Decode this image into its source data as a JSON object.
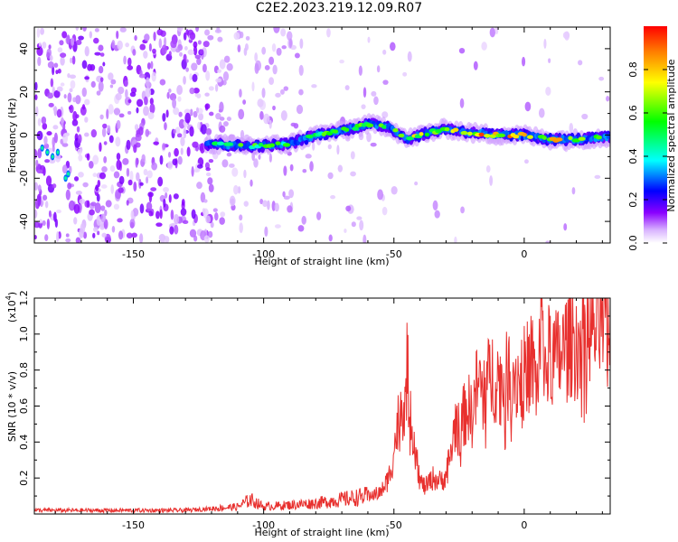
{
  "title": "C2E2.2023.219.12.09.R07",
  "chart_data": [
    {
      "type": "heatmap",
      "xlabel": "Height of straight line (km)",
      "ylabel": "Frequency (Hz)",
      "xlim": [
        -188,
        33
      ],
      "ylim": [
        -50,
        50
      ],
      "x_ticks": [
        -150,
        -100,
        -50,
        0
      ],
      "y_ticks": [
        -40,
        -20,
        0,
        20,
        40
      ],
      "colorbar": {
        "label": "Normalized spectral amplitude",
        "range": [
          0,
          1
        ],
        "ticks": [
          "0.0",
          "0.2",
          "0.4",
          "0.6",
          "0.8"
        ],
        "colormap": "rainbow (white-violet-blue-cyan-green-yellow-red)"
      },
      "ridge": [
        {
          "x": -185,
          "f": -6,
          "amp": 0.5
        },
        {
          "x": -175,
          "f": -20,
          "amp": 0.55
        },
        {
          "x": -120,
          "f": -4,
          "amp": 0.6
        },
        {
          "x": -110,
          "f": -5,
          "amp": 0.65
        },
        {
          "x": -100,
          "f": -5,
          "amp": 0.6
        },
        {
          "x": -90,
          "f": -4,
          "amp": 0.6
        },
        {
          "x": -80,
          "f": 0,
          "amp": 0.6
        },
        {
          "x": -70,
          "f": 2,
          "amp": 0.6
        },
        {
          "x": -60,
          "f": 5,
          "amp": 0.65
        },
        {
          "x": -52,
          "f": 4,
          "amp": 0.6
        },
        {
          "x": -45,
          "f": -2,
          "amp": 0.75
        },
        {
          "x": -40,
          "f": 0,
          "amp": 0.75
        },
        {
          "x": -30,
          "f": 3,
          "amp": 0.8
        },
        {
          "x": -20,
          "f": 1,
          "amp": 0.9
        },
        {
          "x": -10,
          "f": 0,
          "amp": 0.95
        },
        {
          "x": 0,
          "f": 0,
          "amp": 0.8
        },
        {
          "x": 10,
          "f": -2,
          "amp": 0.9
        },
        {
          "x": 20,
          "f": -2,
          "amp": 0.8
        },
        {
          "x": 33,
          "f": -1,
          "amp": 0.7
        }
      ]
    },
    {
      "type": "line",
      "xlabel": "Height of straight line (km)",
      "ylabel": "SNR (10 * v/v)",
      "ylabel_multiplier": "(x10",
      "ylabel_exponent": "4",
      "ylabel_multiplier_close": ")",
      "xlim": [
        -188,
        33
      ],
      "ylim": [
        0,
        1.2
      ],
      "x_ticks": [
        -150,
        -100,
        -50,
        0
      ],
      "y_ticks": [
        "0.2",
        "0.4",
        "0.6",
        "0.8",
        "1.0",
        "1.2"
      ],
      "color": "#e8302e",
      "series": [
        {
          "x": [
            -188,
            -160,
            -130,
            -120,
            -110,
            -105,
            -100,
            -90,
            -80,
            -70,
            -60,
            -55,
            -52,
            -50,
            -48,
            -46,
            -45,
            -43,
            -41,
            -40,
            -38,
            -35,
            -32,
            -30,
            -28,
            -26,
            -25,
            -22,
            -20,
            -18,
            -15,
            -12,
            -10,
            -8,
            -5,
            -2,
            0,
            3,
            5,
            7,
            8,
            10,
            12,
            15,
            18,
            20,
            25,
            30,
            33
          ],
          "y": [
            0.02,
            0.02,
            0.02,
            0.03,
            0.04,
            0.08,
            0.04,
            0.05,
            0.06,
            0.08,
            0.1,
            0.12,
            0.2,
            0.35,
            0.55,
            0.65,
            0.8,
            0.5,
            0.3,
            0.18,
            0.15,
            0.2,
            0.18,
            0.22,
            0.35,
            0.55,
            0.45,
            0.6,
            0.55,
            0.72,
            0.7,
            0.78,
            0.75,
            0.72,
            0.8,
            0.75,
            0.78,
            0.85,
            0.7,
            1.2,
            0.8,
            0.9,
            0.85,
            0.9,
            0.98,
            0.95,
            1.02,
            1.06,
            1.1
          ]
        }
      ]
    }
  ]
}
